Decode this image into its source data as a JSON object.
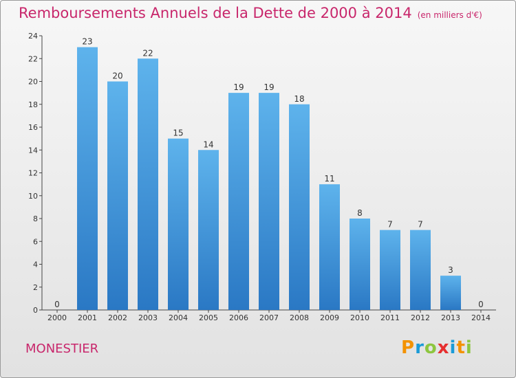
{
  "title": "Remboursements Annuels de la Dette de 2000 à 2014",
  "unit": "(en milliers d'€)",
  "commune": "MONESTIER",
  "logo": {
    "letters": [
      "P",
      "r",
      "o",
      "x",
      "i",
      "t",
      "i"
    ],
    "colors": [
      "#f39200",
      "#1a9bd7",
      "#8dc63f",
      "#e62f2f",
      "#1a9bd7",
      "#f39200",
      "#8dc63f"
    ]
  },
  "chart_data": {
    "type": "bar",
    "categories": [
      "2000",
      "2001",
      "2002",
      "2003",
      "2004",
      "2005",
      "2006",
      "2007",
      "2008",
      "2009",
      "2010",
      "2011",
      "2012",
      "2013",
      "2014"
    ],
    "values": [
      0,
      23,
      20,
      22,
      15,
      14,
      19,
      19,
      18,
      11,
      8,
      7,
      7,
      3,
      0
    ],
    "ylim": [
      0,
      24
    ],
    "yticks": [
      0,
      2,
      4,
      6,
      8,
      10,
      12,
      14,
      16,
      18,
      20,
      22,
      24
    ],
    "bar_color": "#3b8fd9",
    "grid": false
  }
}
